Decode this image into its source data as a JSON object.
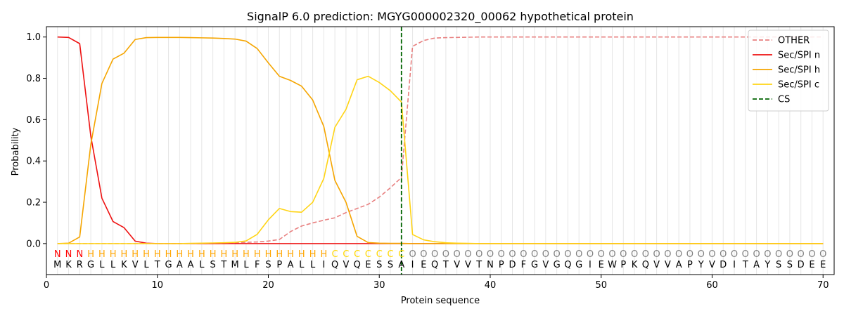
{
  "chart_data": {
    "type": "line",
    "title": "SignalP 6.0 prediction: MGYG000002320_00062 hypothetical protein",
    "xlabel": "Protein sequence",
    "ylabel": "Probability",
    "xlim": [
      0,
      71
    ],
    "ylim": [
      -0.15,
      1.05
    ],
    "x_ticks": [
      0,
      10,
      20,
      30,
      40,
      50,
      60,
      70
    ],
    "y_ticks": [
      0.0,
      0.2,
      0.4,
      0.6,
      0.8,
      1.0
    ],
    "x_tick_labels": [
      "0",
      "10",
      "20",
      "30",
      "40",
      "50",
      "60",
      "70"
    ],
    "y_tick_labels": [
      "0.0",
      "0.2",
      "0.4",
      "0.6",
      "0.8",
      "1.0"
    ],
    "grid": "vertical lines at each residue position",
    "legend_position": "top-right",
    "sequence": [
      "M",
      "K",
      "R",
      "G",
      "L",
      "L",
      "K",
      "V",
      "L",
      "T",
      "G",
      "A",
      "A",
      "L",
      "S",
      "T",
      "M",
      "L",
      "F",
      "S",
      "P",
      "A",
      "L",
      "L",
      "I",
      "Q",
      "V",
      "Q",
      "E",
      "S",
      "S",
      "A",
      "I",
      "E",
      "Q",
      "T",
      "V",
      "V",
      "T",
      "N",
      "P",
      "D",
      "F",
      "G",
      "V",
      "G",
      "Q",
      "G",
      "I",
      "E",
      "W",
      "P",
      "K",
      "Q",
      "V",
      "V",
      "A",
      "P",
      "Y",
      "V",
      "D",
      "I",
      "T",
      "A",
      "Y",
      "S",
      "S",
      "D",
      "E",
      "E"
    ],
    "region_labels": [
      "N",
      "N",
      "N",
      "H",
      "H",
      "H",
      "H",
      "H",
      "H",
      "H",
      "H",
      "H",
      "H",
      "H",
      "H",
      "H",
      "H",
      "H",
      "H",
      "H",
      "H",
      "H",
      "H",
      "H",
      "H",
      "C",
      "C",
      "C",
      "C",
      "C",
      "C",
      "C",
      "O",
      "O",
      "O",
      "O",
      "O",
      "O",
      "O",
      "O",
      "O",
      "O",
      "O",
      "O",
      "O",
      "O",
      "O",
      "O",
      "O",
      "O",
      "O",
      "O",
      "O",
      "O",
      "O",
      "O",
      "O",
      "O",
      "O",
      "O",
      "O",
      "O",
      "O",
      "O",
      "O",
      "O",
      "O",
      "O",
      "O",
      "O"
    ],
    "region_colors": {
      "N": "#ff0000",
      "H": "#ffa500",
      "C": "#ffd700",
      "O": "#808080"
    },
    "cs_position": 32,
    "series": [
      {
        "name": "OTHER",
        "color": "#e88080",
        "style": "dashed",
        "values": [
          0.0,
          0.0,
          0.0,
          0.0,
          0.0,
          0.0,
          0.0,
          0.0,
          0.0,
          0.0,
          0.0,
          0.0,
          0.0,
          0.0,
          0.0,
          0.0,
          0.003,
          0.006,
          0.008,
          0.012,
          0.02,
          0.058,
          0.085,
          0.1,
          0.113,
          0.125,
          0.15,
          0.17,
          0.19,
          0.225,
          0.27,
          0.32,
          0.955,
          0.983,
          0.995,
          0.997,
          0.998,
          0.999,
          1.0,
          1.0,
          1.0,
          1.0,
          1.0,
          1.0,
          1.0,
          1.0,
          1.0,
          1.0,
          1.0,
          1.0,
          1.0,
          1.0,
          1.0,
          1.0,
          1.0,
          1.0,
          1.0,
          1.0,
          1.0,
          1.0,
          1.0,
          1.0,
          1.0,
          1.0,
          1.0,
          1.0,
          1.0,
          1.0,
          1.0,
          1.0
        ]
      },
      {
        "name": "Sec/SPI n",
        "color": "#ee1111",
        "style": "solid",
        "values": [
          1.0,
          0.998,
          0.968,
          0.52,
          0.22,
          0.107,
          0.077,
          0.012,
          0.002,
          0.0,
          0.0,
          0.0,
          0.0,
          0.0,
          0.0,
          0.0,
          0.0,
          0.0,
          0.0,
          0.0,
          0.0,
          0.0,
          0.0,
          0.0,
          0.0,
          0.0,
          0.0,
          0.0,
          0.0,
          0.0,
          0.0,
          0.0,
          0.0,
          0.0,
          0.0,
          0.0,
          0.0,
          0.0,
          0.0,
          0.0,
          0.0,
          0.0,
          0.0,
          0.0,
          0.0,
          0.0,
          0.0,
          0.0,
          0.0,
          0.0,
          0.0,
          0.0,
          0.0,
          0.0,
          0.0,
          0.0,
          0.0,
          0.0,
          0.0,
          0.0,
          0.0,
          0.0,
          0.0,
          0.0,
          0.0,
          0.0,
          0.0,
          0.0,
          0.0,
          0.0
        ]
      },
      {
        "name": "Sec/SPI h",
        "color": "#f5a500",
        "style": "solid",
        "values": [
          0.0,
          0.002,
          0.032,
          0.48,
          0.775,
          0.893,
          0.922,
          0.988,
          0.997,
          0.998,
          0.998,
          0.998,
          0.997,
          0.996,
          0.995,
          0.993,
          0.99,
          0.98,
          0.944,
          0.875,
          0.81,
          0.79,
          0.762,
          0.695,
          0.567,
          0.306,
          0.2,
          0.035,
          0.005,
          0.002,
          0.001,
          0.001,
          0.0,
          0.0,
          0.0,
          0.0,
          0.0,
          0.0,
          0.0,
          0.0,
          0.0,
          0.0,
          0.0,
          0.0,
          0.0,
          0.0,
          0.0,
          0.0,
          0.0,
          0.0,
          0.0,
          0.0,
          0.0,
          0.0,
          0.0,
          0.0,
          0.0,
          0.0,
          0.0,
          0.0,
          0.0,
          0.0,
          0.0,
          0.0,
          0.0,
          0.0,
          0.0,
          0.0,
          0.0,
          0.0
        ]
      },
      {
        "name": "Sec/SPI c",
        "color": "#ffd415",
        "style": "solid",
        "values": [
          0.0,
          0.0,
          0.0,
          0.0,
          0.0,
          0.0,
          0.0,
          0.0,
          0.0,
          0.0,
          0.0,
          0.0,
          0.001,
          0.002,
          0.003,
          0.004,
          0.006,
          0.013,
          0.045,
          0.115,
          0.17,
          0.155,
          0.152,
          0.2,
          0.315,
          0.563,
          0.65,
          0.793,
          0.81,
          0.78,
          0.74,
          0.685,
          0.044,
          0.018,
          0.009,
          0.004,
          0.002,
          0.001,
          0.0,
          0.0,
          0.0,
          0.0,
          0.0,
          0.0,
          0.0,
          0.0,
          0.0,
          0.0,
          0.0,
          0.0,
          0.0,
          0.0,
          0.0,
          0.0,
          0.0,
          0.0,
          0.0,
          0.0,
          0.0,
          0.0,
          0.0,
          0.0,
          0.0,
          0.0,
          0.0,
          0.0,
          0.0,
          0.0,
          0.0,
          0.0
        ]
      }
    ],
    "legend": [
      {
        "label": "OTHER",
        "color": "#e88080",
        "style": "dashed"
      },
      {
        "label": "Sec/SPI n",
        "color": "#ee1111",
        "style": "solid"
      },
      {
        "label": "Sec/SPI h",
        "color": "#f5a500",
        "style": "solid"
      },
      {
        "label": "Sec/SPI c",
        "color": "#ffd415",
        "style": "solid"
      },
      {
        "label": "CS",
        "color": "#006400",
        "style": "dashed"
      }
    ]
  }
}
